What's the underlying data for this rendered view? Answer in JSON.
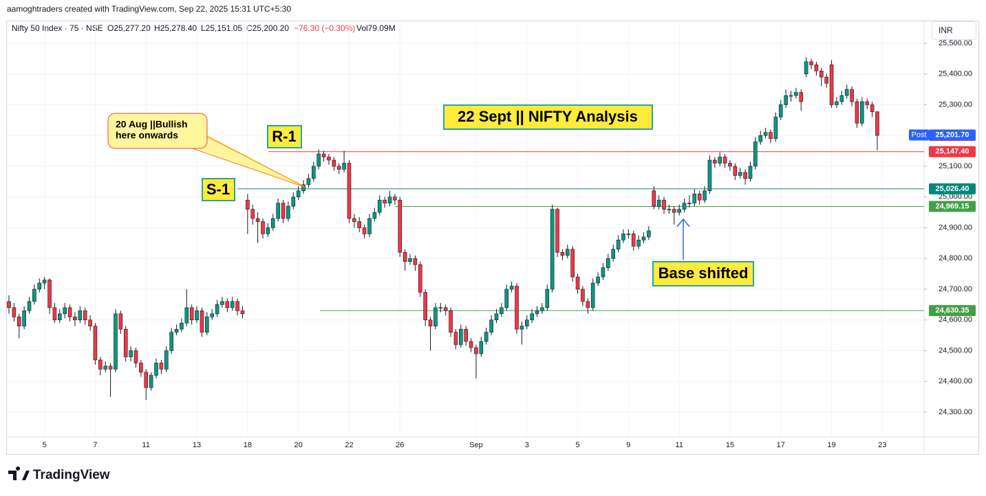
{
  "header": "aamoghtraders created with TradingView.com, Sep 22, 2025 15:31 UTC+5:30",
  "legend": {
    "symbol": "Nifty 50 Index · 75 · NSE",
    "o": "O25,277.20",
    "h": "H25,278.40",
    "l": "L25,151.05",
    "c": "C25,200.20",
    "change": "−76.30 (−0.30%)",
    "vol": "Vol79.09M"
  },
  "currency": "INR",
  "logo": "TradingView",
  "chart_data": {
    "type": "candlestick",
    "up_color": "#089981",
    "down_color": "#f23645",
    "ylim": [
      24220,
      25535
    ],
    "yticks": [
      {
        "value": 25500,
        "label": "25,500.00"
      },
      {
        "value": 25400,
        "label": "25,400.00"
      },
      {
        "value": 25300,
        "label": "25,300.00"
      },
      {
        "value": 25200,
        "label": "25,200.00"
      },
      {
        "value": 25100,
        "label": "25,100.00"
      },
      {
        "value": 25000,
        "label": "25,000.00"
      },
      {
        "value": 24900,
        "label": "24,900.00"
      },
      {
        "value": 24800,
        "label": "24,800.00"
      },
      {
        "value": 24700,
        "label": "24,700.00"
      },
      {
        "value": 24600,
        "label": "24,600.00"
      },
      {
        "value": 24500,
        "label": "24,500.00"
      },
      {
        "value": 24400,
        "label": "24,400.00"
      },
      {
        "value": 24300,
        "label": "24,300.00"
      }
    ],
    "grid": true,
    "categories": [
      null,
      null,
      null,
      null,
      null,
      null,
      null,
      "5",
      null,
      null,
      null,
      null,
      null,
      null,
      null,
      null,
      null,
      "7",
      null,
      null,
      null,
      null,
      null,
      null,
      null,
      null,
      null,
      "11",
      null,
      null,
      null,
      null,
      null,
      null,
      null,
      null,
      null,
      "13",
      null,
      null,
      null,
      null,
      null,
      null,
      null,
      null,
      null,
      "18",
      null,
      null,
      null,
      null,
      null,
      null,
      null,
      null,
      null,
      "20",
      null,
      null,
      null,
      null,
      null,
      null,
      null,
      null,
      null,
      "22",
      null,
      null,
      null,
      null,
      null,
      null,
      null,
      null,
      null,
      "26",
      null,
      null,
      null,
      null,
      null,
      null,
      null,
      null,
      null,
      null,
      null,
      null,
      null,
      null,
      "Sep",
      null,
      null,
      null,
      null,
      null,
      null,
      null,
      null,
      null,
      "3",
      null,
      null,
      null,
      null,
      null,
      null,
      null,
      null,
      null,
      "5",
      null,
      null,
      null,
      null,
      null,
      null,
      null,
      null,
      null,
      "9",
      null,
      null,
      null,
      null,
      null,
      null,
      null,
      null,
      null,
      "11",
      null,
      null,
      null,
      null,
      null,
      null,
      null,
      null,
      null,
      "15",
      null,
      null,
      null,
      null,
      null,
      null,
      null,
      null,
      null,
      "17",
      null,
      null,
      null,
      null,
      null,
      null,
      null,
      null,
      null,
      "19",
      null,
      null,
      null,
      null,
      null,
      null,
      null,
      null,
      null,
      "23"
    ],
    "ohlc": [
      [
        24660,
        24680,
        24620,
        24640
      ],
      [
        24640,
        24655,
        24595,
        24610
      ],
      [
        24610,
        24620,
        24540,
        24580
      ],
      [
        24580,
        24645,
        24570,
        24630
      ],
      [
        24630,
        24675,
        24620,
        24660
      ],
      [
        24660,
        24715,
        24650,
        24700
      ],
      [
        24700,
        24735,
        24690,
        24720
      ],
      [
        24720,
        24740,
        24700,
        24730
      ],
      [
        24730,
        24735,
        24620,
        24640
      ],
      [
        24640,
        24655,
        24590,
        24600
      ],
      [
        24600,
        24635,
        24590,
        24620
      ],
      [
        24620,
        24655,
        24605,
        24640
      ],
      [
        24640,
        24650,
        24595,
        24610
      ],
      [
        24610,
        24625,
        24580,
        24600
      ],
      [
        24600,
        24645,
        24590,
        24630
      ],
      [
        24630,
        24640,
        24585,
        24600
      ],
      [
        24600,
        24615,
        24565,
        24580
      ],
      [
        24580,
        24590,
        24455,
        24470
      ],
      [
        24470,
        24480,
        24420,
        24440
      ],
      [
        24440,
        24465,
        24430,
        24450
      ],
      [
        24450,
        24460,
        24350,
        24440
      ],
      [
        24440,
        24635,
        24430,
        24620
      ],
      [
        24620,
        24630,
        24555,
        24570
      ],
      [
        24570,
        24580,
        24465,
        24480
      ],
      [
        24480,
        24515,
        24465,
        24500
      ],
      [
        24500,
        24510,
        24445,
        24460
      ],
      [
        24460,
        24470,
        24415,
        24430
      ],
      [
        24430,
        24440,
        24340,
        24380
      ],
      [
        24380,
        24430,
        24370,
        24420
      ],
      [
        24420,
        24475,
        24410,
        24460
      ],
      [
        24460,
        24470,
        24425,
        24440
      ],
      [
        24440,
        24515,
        24430,
        24500
      ],
      [
        24500,
        24575,
        24490,
        24560
      ],
      [
        24560,
        24585,
        24550,
        24570
      ],
      [
        24570,
        24605,
        24560,
        24590
      ],
      [
        24590,
        24700,
        24580,
        24640
      ],
      [
        24640,
        24650,
        24585,
        24600
      ],
      [
        24600,
        24645,
        24590,
        24630
      ],
      [
        24630,
        24640,
        24545,
        24560
      ],
      [
        24560,
        24625,
        24550,
        24610
      ],
      [
        24610,
        24635,
        24600,
        24620
      ],
      [
        24620,
        24665,
        24610,
        24650
      ],
      [
        24650,
        24675,
        24640,
        24660
      ],
      [
        24660,
        24670,
        24625,
        24640
      ],
      [
        24640,
        24675,
        24630,
        24660
      ],
      [
        24660,
        24670,
        24615,
        24630
      ],
      [
        24630,
        24645,
        24605,
        24620
      ],
      [
        24990,
        25010,
        24880,
        24960
      ],
      [
        24960,
        24975,
        24910,
        24930
      ],
      [
        24930,
        24950,
        24850,
        24920
      ],
      [
        24920,
        24930,
        24865,
        24880
      ],
      [
        24880,
        24915,
        24870,
        24900
      ],
      [
        24900,
        24945,
        24890,
        24930
      ],
      [
        24930,
        24995,
        24920,
        24980
      ],
      [
        24980,
        24990,
        24915,
        24930
      ],
      [
        24930,
        24985,
        24920,
        24970
      ],
      [
        24970,
        25015,
        24960,
        25000
      ],
      [
        25000,
        25035,
        24990,
        25020
      ],
      [
        25020,
        25055,
        25010,
        25040
      ],
      [
        25040,
        25075,
        25030,
        25060
      ],
      [
        25060,
        25115,
        25050,
        25100
      ],
      [
        25100,
        25155,
        25090,
        25140
      ],
      [
        25140,
        25150,
        25115,
        25130
      ],
      [
        25130,
        25140,
        25105,
        25120
      ],
      [
        25120,
        25130,
        25085,
        25100
      ],
      [
        25100,
        25110,
        25075,
        25090
      ],
      [
        25090,
        25150,
        25080,
        25110
      ],
      [
        25110,
        25120,
        24915,
        24930
      ],
      [
        24930,
        24945,
        24900,
        24920
      ],
      [
        24920,
        24935,
        24885,
        24900
      ],
      [
        24900,
        24910,
        24865,
        24880
      ],
      [
        24880,
        24945,
        24870,
        24930
      ],
      [
        24930,
        24965,
        24920,
        24950
      ],
      [
        24950,
        25005,
        24940,
        24990
      ],
      [
        24990,
        25000,
        24965,
        24980
      ],
      [
        24980,
        25020,
        24970,
        25000
      ],
      [
        25000,
        25010,
        24975,
        24990
      ],
      [
        24990,
        25000,
        24805,
        24820
      ],
      [
        24820,
        24830,
        24760,
        24790
      ],
      [
        24790,
        24815,
        24780,
        24800
      ],
      [
        24800,
        24810,
        24760,
        24780
      ],
      [
        24780,
        24790,
        24675,
        24690
      ],
      [
        24690,
        24700,
        24580,
        24600
      ],
      [
        24600,
        24610,
        24500,
        24580
      ],
      [
        24580,
        24655,
        24570,
        24640
      ],
      [
        24640,
        24655,
        24625,
        24640
      ],
      [
        24640,
        24650,
        24615,
        24630
      ],
      [
        24630,
        24640,
        24545,
        24560
      ],
      [
        24560,
        24570,
        24505,
        24520
      ],
      [
        24520,
        24585,
        24510,
        24570
      ],
      [
        24570,
        24580,
        24515,
        24530
      ],
      [
        24530,
        24540,
        24495,
        24510
      ],
      [
        24510,
        24520,
        24410,
        24490
      ],
      [
        24490,
        24545,
        24480,
        24530
      ],
      [
        24530,
        24575,
        24520,
        24560
      ],
      [
        24560,
        24615,
        24550,
        24600
      ],
      [
        24600,
        24635,
        24590,
        24620
      ],
      [
        24620,
        24655,
        24610,
        24640
      ],
      [
        24640,
        24715,
        24630,
        24700
      ],
      [
        24700,
        24725,
        24690,
        24710
      ],
      [
        24710,
        24720,
        24555,
        24570
      ],
      [
        24570,
        24595,
        24520,
        24580
      ],
      [
        24580,
        24615,
        24570,
        24600
      ],
      [
        24600,
        24635,
        24590,
        24620
      ],
      [
        24620,
        24645,
        24610,
        24630
      ],
      [
        24630,
        24655,
        24620,
        24640
      ],
      [
        24640,
        24715,
        24630,
        24700
      ],
      [
        24700,
        24975,
        24690,
        24960
      ],
      [
        24960,
        24965,
        24805,
        24820
      ],
      [
        24820,
        24830,
        24795,
        24810
      ],
      [
        24810,
        24845,
        24800,
        24830
      ],
      [
        24830,
        24840,
        24725,
        24740
      ],
      [
        24740,
        24750,
        24685,
        24700
      ],
      [
        24700,
        24710,
        24645,
        24660
      ],
      [
        24660,
        24670,
        24620,
        24640
      ],
      [
        24640,
        24735,
        24630,
        24720
      ],
      [
        24720,
        24755,
        24710,
        24740
      ],
      [
        24740,
        24785,
        24730,
        24770
      ],
      [
        24770,
        24815,
        24760,
        24800
      ],
      [
        24800,
        24845,
        24790,
        24830
      ],
      [
        24830,
        24875,
        24820,
        24860
      ],
      [
        24860,
        24895,
        24850,
        24880
      ],
      [
        24880,
        24895,
        24865,
        24880
      ],
      [
        24880,
        24890,
        24825,
        24840
      ],
      [
        24840,
        24875,
        24830,
        24860
      ],
      [
        24860,
        24885,
        24850,
        24870
      ],
      [
        24870,
        24905,
        24860,
        24890
      ],
      [
        25020,
        25035,
        24960,
        24970
      ],
      [
        24970,
        25005,
        24960,
        24990
      ],
      [
        24990,
        25000,
        24945,
        24960
      ],
      [
        24960,
        24975,
        24945,
        24960
      ],
      [
        24960,
        24970,
        24910,
        24950
      ],
      [
        24950,
        24975,
        24940,
        24960
      ],
      [
        24960,
        24995,
        24950,
        24980
      ],
      [
        24980,
        25005,
        24965,
        24980
      ],
      [
        24980,
        25025,
        24970,
        25010
      ],
      [
        25010,
        25020,
        24975,
        24990
      ],
      [
        24990,
        25035,
        24980,
        25020
      ],
      [
        25020,
        25135,
        25010,
        25120
      ],
      [
        25120,
        25130,
        25095,
        25110
      ],
      [
        25110,
        25145,
        25100,
        25130
      ],
      [
        25130,
        25140,
        25095,
        25110
      ],
      [
        25110,
        25120,
        25085,
        25100
      ],
      [
        25100,
        25110,
        25055,
        25070
      ],
      [
        25070,
        25095,
        25060,
        25080
      ],
      [
        25080,
        25090,
        25040,
        25060
      ],
      [
        25060,
        25115,
        25050,
        25100
      ],
      [
        25100,
        25195,
        25090,
        25180
      ],
      [
        25180,
        25215,
        25170,
        25200
      ],
      [
        25200,
        25225,
        25190,
        25210
      ],
      [
        25210,
        25220,
        25175,
        25190
      ],
      [
        25190,
        25275,
        25180,
        25260
      ],
      [
        25260,
        25315,
        25250,
        25300
      ],
      [
        25300,
        25350,
        25290,
        25330
      ],
      [
        25330,
        25345,
        25310,
        25330
      ],
      [
        25330,
        25355,
        25320,
        25340
      ],
      [
        25340,
        25350,
        25280,
        25310
      ],
      [
        25400,
        25455,
        25390,
        25440
      ],
      [
        25440,
        25450,
        25415,
        25430
      ],
      [
        25430,
        25440,
        25395,
        25410
      ],
      [
        25410,
        25420,
        25360,
        25390
      ],
      [
        25390,
        25400,
        25355,
        25370
      ],
      [
        25430,
        25445,
        25290,
        25300
      ],
      [
        25300,
        25325,
        25290,
        25310
      ],
      [
        25310,
        25345,
        25300,
        25330
      ],
      [
        25330,
        25365,
        25320,
        25350
      ],
      [
        25350,
        25360,
        25295,
        25310
      ],
      [
        25310,
        25320,
        25225,
        25240
      ],
      [
        25240,
        25325,
        25230,
        25310
      ],
      [
        25310,
        25320,
        25285,
        25300
      ],
      [
        25300,
        25310,
        25260,
        25277.2
      ],
      [
        25277.2,
        25278.4,
        25151.05,
        25200.2
      ],
      null
    ],
    "last_price_label": "25,200.20",
    "post": {
      "label": "Post",
      "value": 25201.7,
      "price_label": "25,201.70"
    },
    "levels": [
      {
        "value": 25147.4,
        "label": "25,147.40",
        "color": "#f23645"
      },
      {
        "value": 25026.4,
        "label": "25,026.40",
        "color": "#00897b"
      },
      {
        "value": 24969.15,
        "label": "24,969.15",
        "color": "#43a047"
      },
      {
        "value": 24630.35,
        "label": "24,630.35",
        "color": "#43a047"
      }
    ],
    "annotations": {
      "title": "22 Sept || NIFTY Analysis",
      "r1": "R-1",
      "s1": "S-1",
      "callout_1": "20 Aug ||Bullish",
      "callout_2": "here onwards",
      "base": "Base shifted"
    }
  }
}
